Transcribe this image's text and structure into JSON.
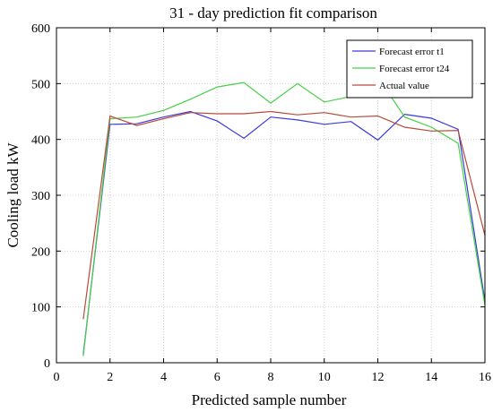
{
  "chart_data": {
    "type": "line",
    "title": "31 - day prediction fit comparison",
    "xlabel": "Predicted sample number",
    "ylabel": "Cooling load  kW",
    "xlim": [
      0,
      16
    ],
    "ylim": [
      0,
      600
    ],
    "xticks": [
      0,
      2,
      4,
      6,
      8,
      10,
      12,
      14,
      16
    ],
    "yticks": [
      0,
      100,
      200,
      300,
      400,
      500,
      600
    ],
    "grid": true,
    "legend_position": "top-right",
    "x": [
      1,
      2,
      3,
      4,
      5,
      6,
      7,
      8,
      9,
      10,
      11,
      12,
      13,
      14,
      15,
      16
    ],
    "series": [
      {
        "name": "Forecast error t1",
        "color": "#3a3ad8",
        "values": [
          15,
          427,
          428,
          440,
          450,
          433,
          402,
          440,
          435,
          427,
          432,
          399,
          445,
          438,
          418,
          110
        ]
      },
      {
        "name": "Forecast error t24",
        "color": "#44d044",
        "values": [
          12,
          437,
          440,
          452,
          472,
          494,
          502,
          465,
          500,
          467,
          477,
          512,
          440,
          422,
          393,
          103
        ]
      },
      {
        "name": "Actual value",
        "color": "#b84a3a",
        "values": [
          78,
          442,
          425,
          437,
          448,
          446,
          446,
          450,
          444,
          448,
          440,
          442,
          422,
          415,
          416,
          228
        ]
      }
    ]
  }
}
